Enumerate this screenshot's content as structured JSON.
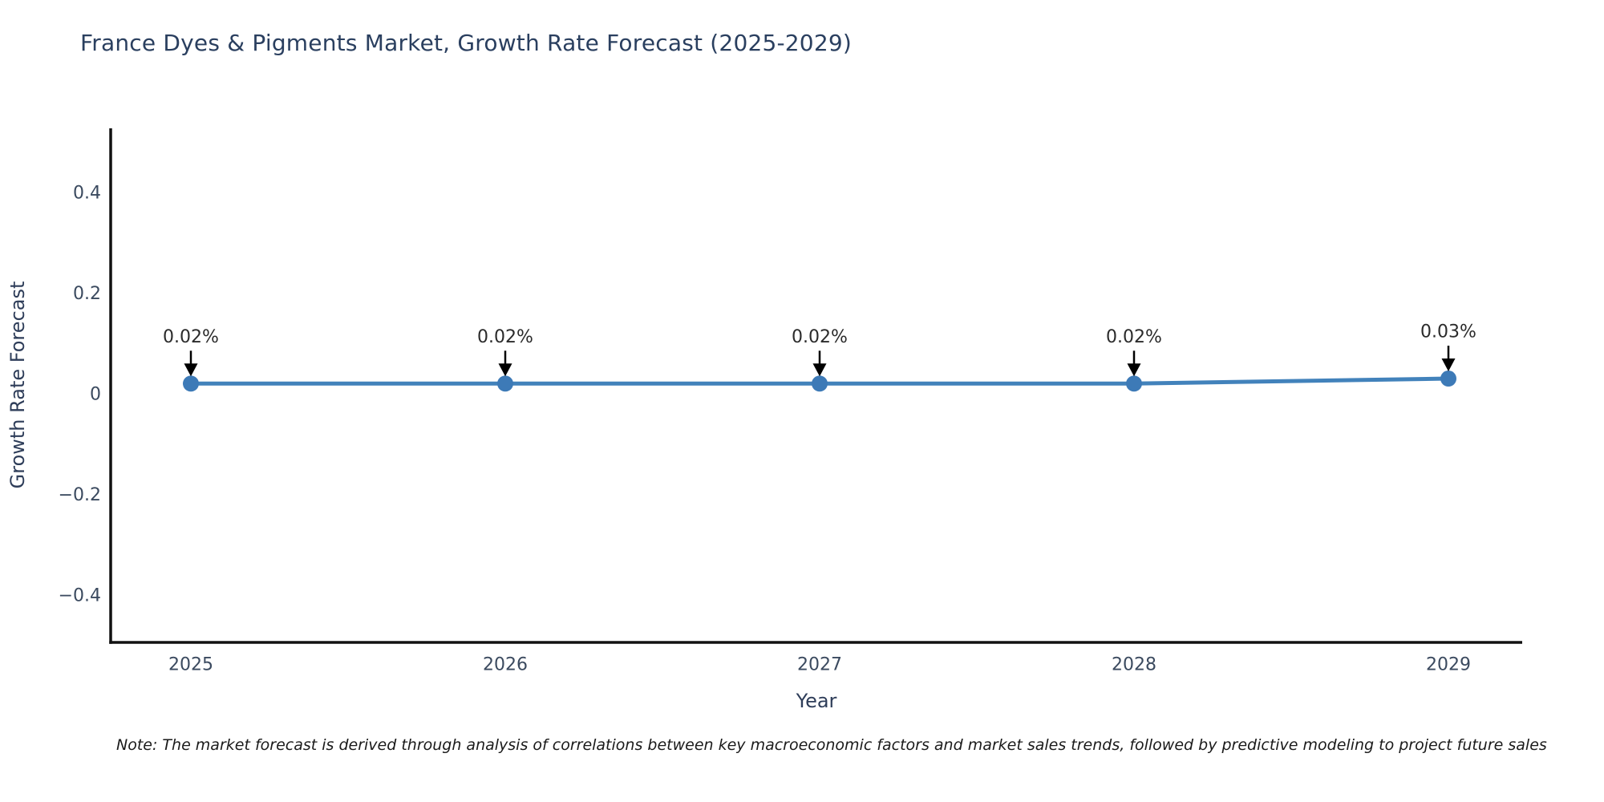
{
  "chart_data": {
    "type": "line",
    "title": "France Dyes & Pigments Market, Growth Rate Forecast (2025-2029)",
    "xlabel": "Year",
    "ylabel": "Growth Rate Forecast",
    "categories": [
      "2025",
      "2026",
      "2027",
      "2028",
      "2029"
    ],
    "series": [
      {
        "name": "Growth Rate Forecast",
        "values": [
          0.02,
          0.02,
          0.02,
          0.02,
          0.03
        ]
      }
    ],
    "point_labels": [
      "0.02%",
      "0.02%",
      "0.02%",
      "0.02%",
      "0.03%"
    ],
    "y_ticks": [
      {
        "value": 0.4,
        "label": "0.4"
      },
      {
        "value": 0.2,
        "label": "0.2"
      },
      {
        "value": 0,
        "label": "0"
      },
      {
        "value": -0.2,
        "label": "−0.2"
      },
      {
        "value": -0.4,
        "label": "−0.4"
      }
    ],
    "ylim": [
      -0.494,
      0.527
    ],
    "grid": false,
    "legend": "none",
    "colors": {
      "line": "#4282bb",
      "marker": "#3d7ab7",
      "axis": "#111111",
      "tick_text": "#3b4a5f",
      "title_text": "#2a3f5f",
      "axis_title_text": "#2e3d59",
      "annotation_text": "#2b2b2b",
      "annotation_arrow": "#000000",
      "note_text": "#1a1a1a",
      "background": "#ffffff"
    }
  },
  "note": "Note: The market forecast is derived through analysis of correlations between key macroeconomic factors and market sales trends, followed by predictive modeling to project future sales"
}
